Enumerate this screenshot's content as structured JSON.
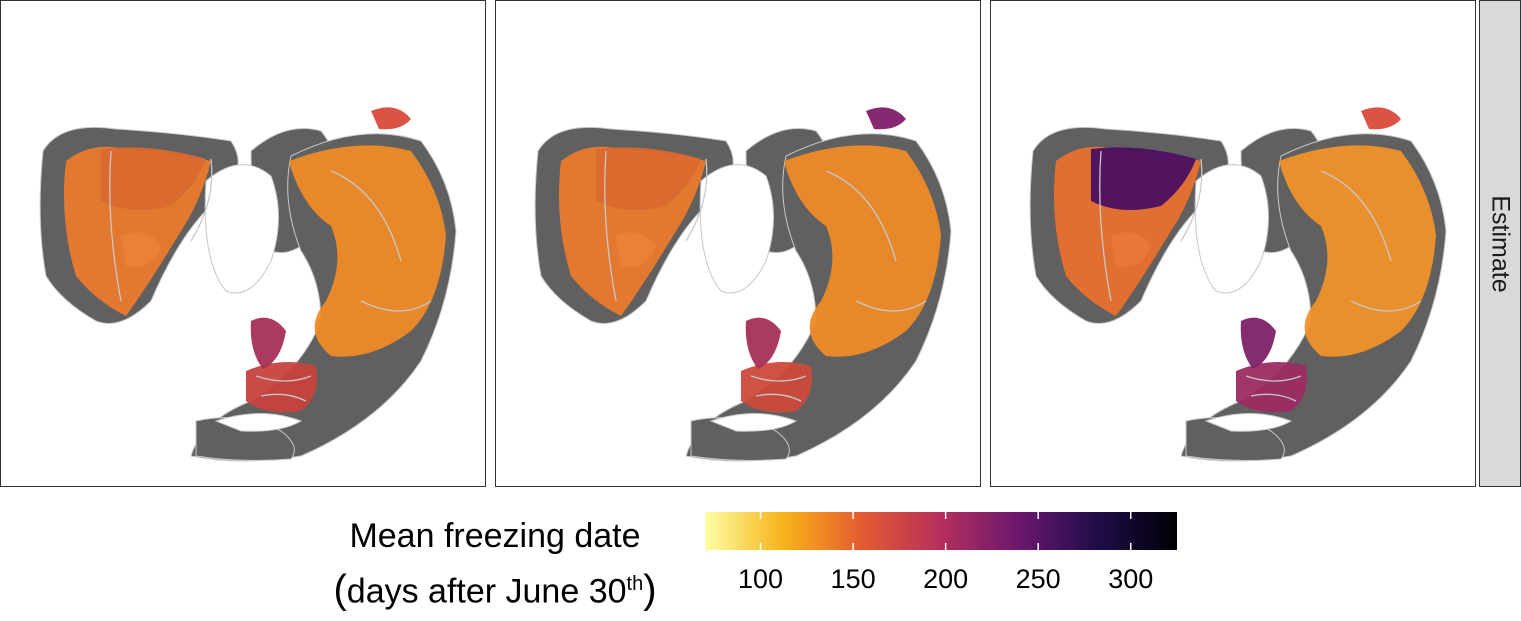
{
  "facet_strip": "Estimate",
  "legend": {
    "title_line1": "Mean freezing date",
    "title_line2_prefix": "days after June 30",
    "title_line2_sup": "th",
    "ticks": [
      "100",
      "150",
      "200",
      "250",
      "300"
    ],
    "range": [
      70,
      325
    ],
    "tick_values": [
      100,
      150,
      200,
      250,
      300
    ],
    "palette": [
      "#fcfea4",
      "#f8b319",
      "#e45a31",
      "#b52f5c",
      "#6a176e",
      "#1f0c48",
      "#000004"
    ]
  },
  "panels": [
    {
      "name": "panel-1",
      "north_america_color": "#ea7a2d",
      "greenland_color": "#d9692e",
      "europe_color": "#c7423f",
      "scandinavia_color": "#a72f56",
      "asia_color": "#ee8a27",
      "east_siberia_color": "#d94a3a"
    },
    {
      "name": "panel-2",
      "north_america_color": "#ea7a2d",
      "greenland_color": "#d9692e",
      "europe_color": "#cc4a3a",
      "scandinavia_color": "#a72f56",
      "asia_color": "#ee8a27",
      "east_siberia_color": "#7f1e6a"
    },
    {
      "name": "panel-3",
      "north_america_color": "#e8702f",
      "greenland_color": "#4a0f62",
      "europe_color": "#9b2b62",
      "scandinavia_color": "#7e2167",
      "asia_color": "#f0922a",
      "east_siberia_color": "#d94a3a"
    }
  ]
}
